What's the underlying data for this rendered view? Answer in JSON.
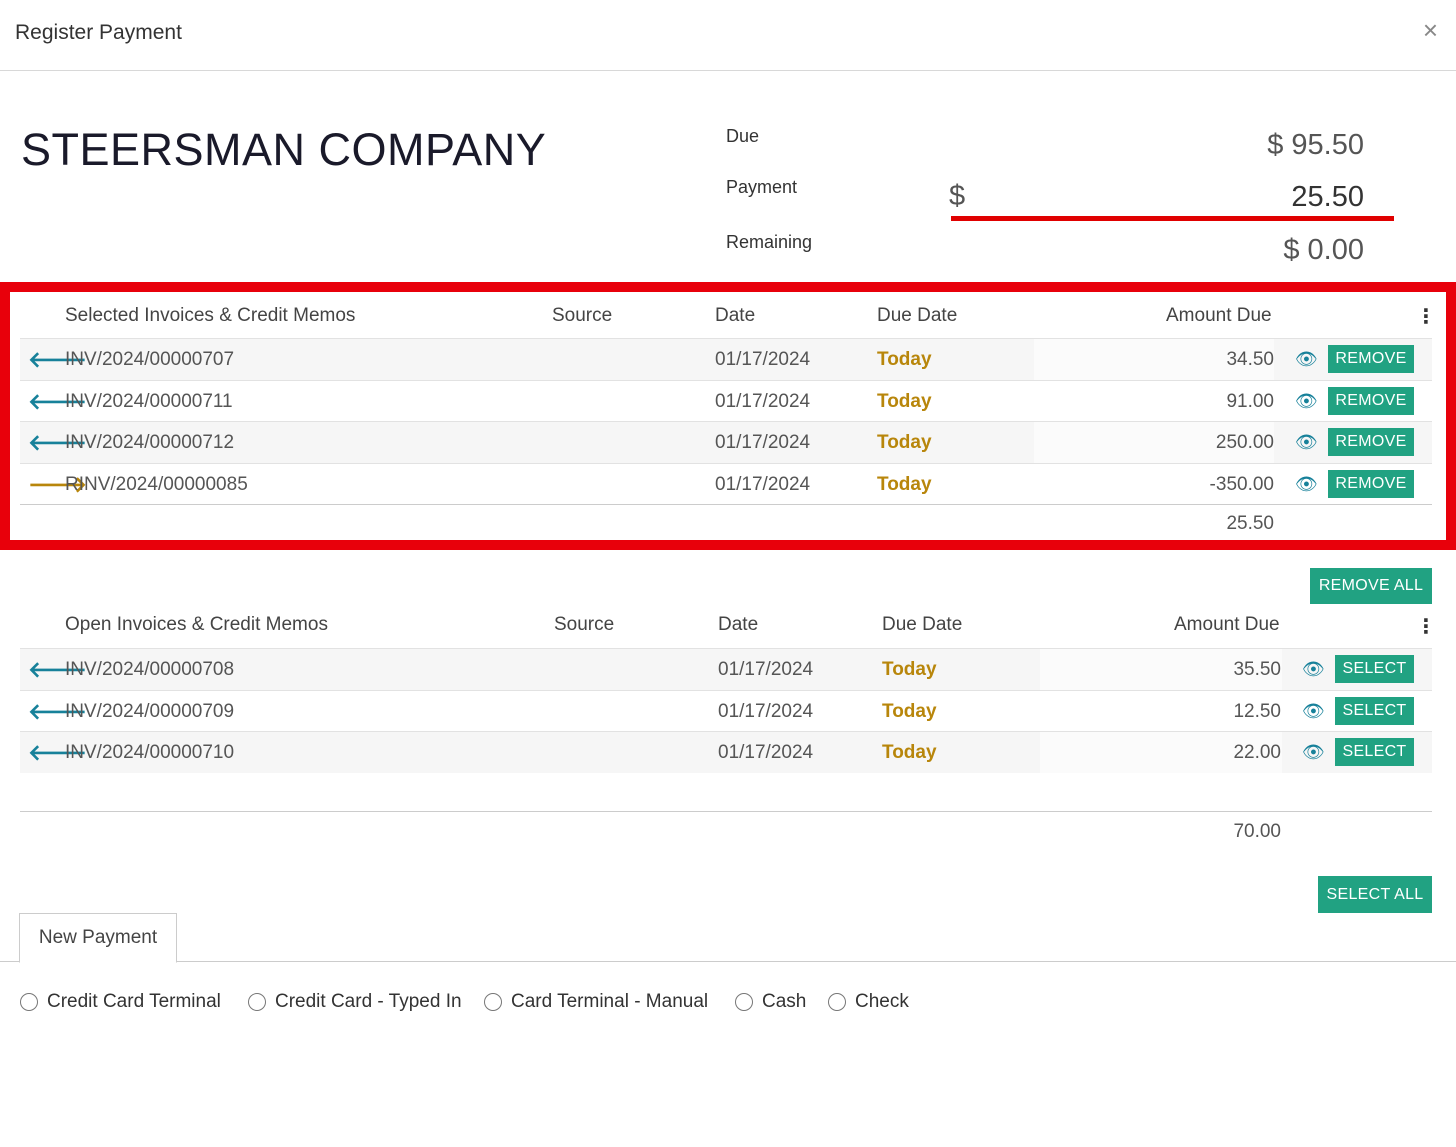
{
  "modal": {
    "title": "Register Payment",
    "close_glyph": "×"
  },
  "partner": {
    "name": "STEERSMAN COMPANY"
  },
  "summary": {
    "due_label": "Due",
    "due_value": "$ 95.50",
    "payment_label": "Payment",
    "payment_currency": "$",
    "payment_value": "25.50",
    "remaining_label": "Remaining",
    "remaining_value": "$ 0.00"
  },
  "selected_table": {
    "headers": {
      "name": "Selected Invoices & Credit Memos",
      "source": "Source",
      "date": "Date",
      "due_date": "Due Date",
      "amount": "Amount Due"
    },
    "rows": [
      {
        "direction": "left",
        "name": "INV/2024/00000707",
        "source": "",
        "date": "01/17/2024",
        "due": "Today",
        "amount": "34.50",
        "action": "REMOVE"
      },
      {
        "direction": "left",
        "name": "INV/2024/00000711",
        "source": "",
        "date": "01/17/2024",
        "due": "Today",
        "amount": "91.00",
        "action": "REMOVE"
      },
      {
        "direction": "left",
        "name": "INV/2024/00000712",
        "source": "",
        "date": "01/17/2024",
        "due": "Today",
        "amount": "250.00",
        "action": "REMOVE"
      },
      {
        "direction": "right",
        "name": "RINV/2024/00000085",
        "source": "",
        "date": "01/17/2024",
        "due": "Today",
        "amount": "-350.00",
        "action": "REMOVE"
      }
    ],
    "total": "25.50",
    "bulk_button": "REMOVE ALL"
  },
  "open_table": {
    "headers": {
      "name": "Open Invoices & Credit Memos",
      "source": "Source",
      "date": "Date",
      "due_date": "Due Date",
      "amount": "Amount Due"
    },
    "rows": [
      {
        "direction": "left",
        "name": "INV/2024/00000708",
        "source": "",
        "date": "01/17/2024",
        "due": "Today",
        "amount": "35.50",
        "action": "SELECT"
      },
      {
        "direction": "left",
        "name": "INV/2024/00000709",
        "source": "",
        "date": "01/17/2024",
        "due": "Today",
        "amount": "12.50",
        "action": "SELECT"
      },
      {
        "direction": "left",
        "name": "INV/2024/00000710",
        "source": "",
        "date": "01/17/2024",
        "due": "Today",
        "amount": "22.00",
        "action": "SELECT"
      }
    ],
    "total": "70.00",
    "bulk_button": "SELECT ALL"
  },
  "tabs": [
    {
      "label": "New Payment"
    }
  ],
  "payment_methods": [
    {
      "label": "Credit Card Terminal"
    },
    {
      "label": "Credit Card - Typed In"
    },
    {
      "label": "Card Terminal - Manual"
    },
    {
      "label": "Cash"
    },
    {
      "label": "Check"
    }
  ],
  "icons": {
    "arrow_left": "arrow-left-icon",
    "arrow_right": "arrow-right-icon",
    "eye": "eye-icon",
    "kebab": "kebab-menu-icon"
  },
  "colors": {
    "accent": "#21a282",
    "link_teal": "#17819a",
    "due_gold": "#b8860b",
    "highlight_red": "#e8000b"
  }
}
